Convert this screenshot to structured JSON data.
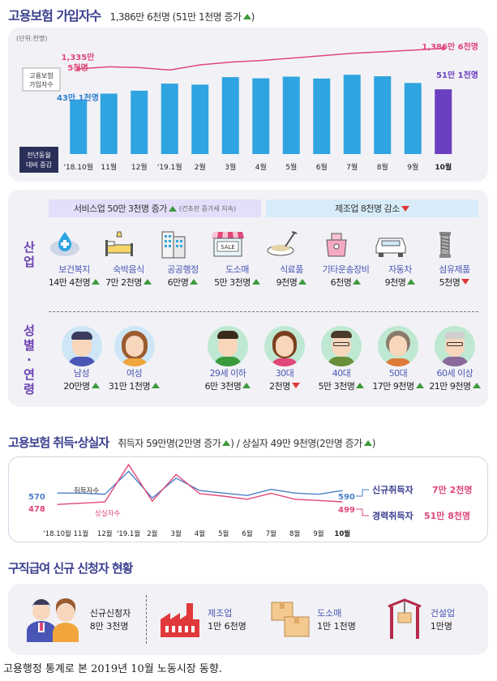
{
  "header": {
    "title": "고용보험 가입자수",
    "summary": "1,386만 6천명 (51만 1천명 증가"
  },
  "chart_data": [
    {
      "type": "bar",
      "unit": "(단위:천명)",
      "categories": [
        "'18.10월",
        "11월",
        "12월",
        "'19.1월",
        "2월",
        "3월",
        "4월",
        "5월",
        "6월",
        "7월",
        "8월",
        "9월",
        "10월"
      ],
      "values": [
        431,
        477,
        500,
        556,
        548,
        607,
        598,
        611,
        596,
        626,
        614,
        561,
        511
      ],
      "row_label_line1": "전년동월",
      "row_label_line2": "대비 증감",
      "line_label_line1": "고용보험",
      "line_label_line2": "가입자수",
      "line_values": [
        1335,
        1340,
        1338,
        1332,
        1345,
        1352,
        1356,
        1362,
        1368,
        1374,
        1378,
        1382,
        1386.6
      ],
      "first_line_label_1": "1,335만",
      "first_line_label_2": "5천명",
      "last_line_label": "1,386만 6천명",
      "first_bar_label": "43만 1천명",
      "last_bar_label": "51만 1천명",
      "highlight_color": "#6a3fc0",
      "bar_color": "#2fa4e0"
    },
    {
      "type": "line",
      "categories": [
        "'18.10월",
        "11월",
        "12월",
        "'19.1월",
        "2월",
        "3월",
        "4월",
        "5월",
        "6월",
        "7월",
        "8월",
        "9월",
        "10월"
      ],
      "series": [
        {
          "name": "취득자수",
          "values": [
            570,
            570,
            560,
            745,
            530,
            690,
            590,
            570,
            550,
            600,
            570,
            560,
            590
          ],
          "color": "#4a7fc8"
        },
        {
          "name": "상실자수",
          "values": [
            478,
            488,
            498,
            800,
            505,
            720,
            565,
            545,
            520,
            568,
            520,
            510,
            499
          ],
          "color": "#e0477a"
        }
      ],
      "first_label_acq": "570",
      "first_label_loss": "478",
      "last_label_acq": "590",
      "last_label_loss": "499"
    }
  ],
  "industry": {
    "section_label_1": "산",
    "section_label_2": "업",
    "service_header": "서비스업 50만 3천명 증가",
    "service_note": "(건초란 증가세 지속)",
    "manuf_header": "제조업 8천명 감소",
    "items": [
      {
        "label": "보건복지",
        "value": "14만 4천명",
        "trend": "up",
        "icon": "health-icon"
      },
      {
        "label": "숙박음식",
        "value": "7만 2천명",
        "trend": "up",
        "icon": "bed-icon"
      },
      {
        "label": "공공행정",
        "value": "6만명",
        "trend": "up",
        "icon": "building-icon"
      },
      {
        "label": "도소매",
        "value": "5만 3천명",
        "trend": "up",
        "icon": "shop-icon",
        "sign": "SALE"
      },
      {
        "label": "식료품",
        "value": "9천명",
        "trend": "up",
        "icon": "food-icon"
      },
      {
        "label": "기타운송장비",
        "value": "6천명",
        "trend": "up",
        "icon": "ship-icon"
      },
      {
        "label": "자동차",
        "value": "9천명",
        "trend": "up",
        "icon": "car-icon"
      },
      {
        "label": "섬유제품",
        "value": "5천명",
        "trend": "down",
        "icon": "thread-icon"
      }
    ]
  },
  "demographics": {
    "section_label_1": "성",
    "section_label_2": "별",
    "section_label_3": "·",
    "section_label_4": "연",
    "section_label_5": "령",
    "items": [
      {
        "label": "남성",
        "value": "20만명",
        "trend": "up"
      },
      {
        "label": "여성",
        "value": "31만 1천명",
        "trend": "up"
      },
      {
        "label": "29세 이하",
        "value": "6만 3천명",
        "trend": "up"
      },
      {
        "label": "30대",
        "value": "2천명",
        "trend": "down"
      },
      {
        "label": "40대",
        "value": "5만 3천명",
        "trend": "up"
      },
      {
        "label": "50대",
        "value": "17만 9천명",
        "trend": "up"
      },
      {
        "label": "60세 이상",
        "value": "21만 9천명",
        "trend": "up"
      }
    ]
  },
  "flows": {
    "title": "고용보험 취득·상실자",
    "summary_1": "취득자 59만명(2만명 증가",
    "summary_2": ") / 상실자 49만 9천명(2만명 증가",
    "summary_3": ")",
    "legend_acq_name": "신규취득자",
    "legend_acq_value": "7만 2천명",
    "legend_loss_name": "경력취득자",
    "legend_loss_value": "51만 8천명",
    "series_label_acq": "취득자수",
    "series_label_loss": "상실자수"
  },
  "benefits": {
    "title": "구직급여 신규 신청자 현황",
    "items": [
      {
        "label": "신규신청자",
        "value": "8만 3천명"
      },
      {
        "label": "제조업",
        "value": "1만 6천명"
      },
      {
        "label": "도소매",
        "value": "1만 1천명"
      },
      {
        "label": "건설업",
        "value": "1만명"
      }
    ]
  },
  "caption": "고용행정 통계로 본 2019년 10월 노동시장 동향."
}
